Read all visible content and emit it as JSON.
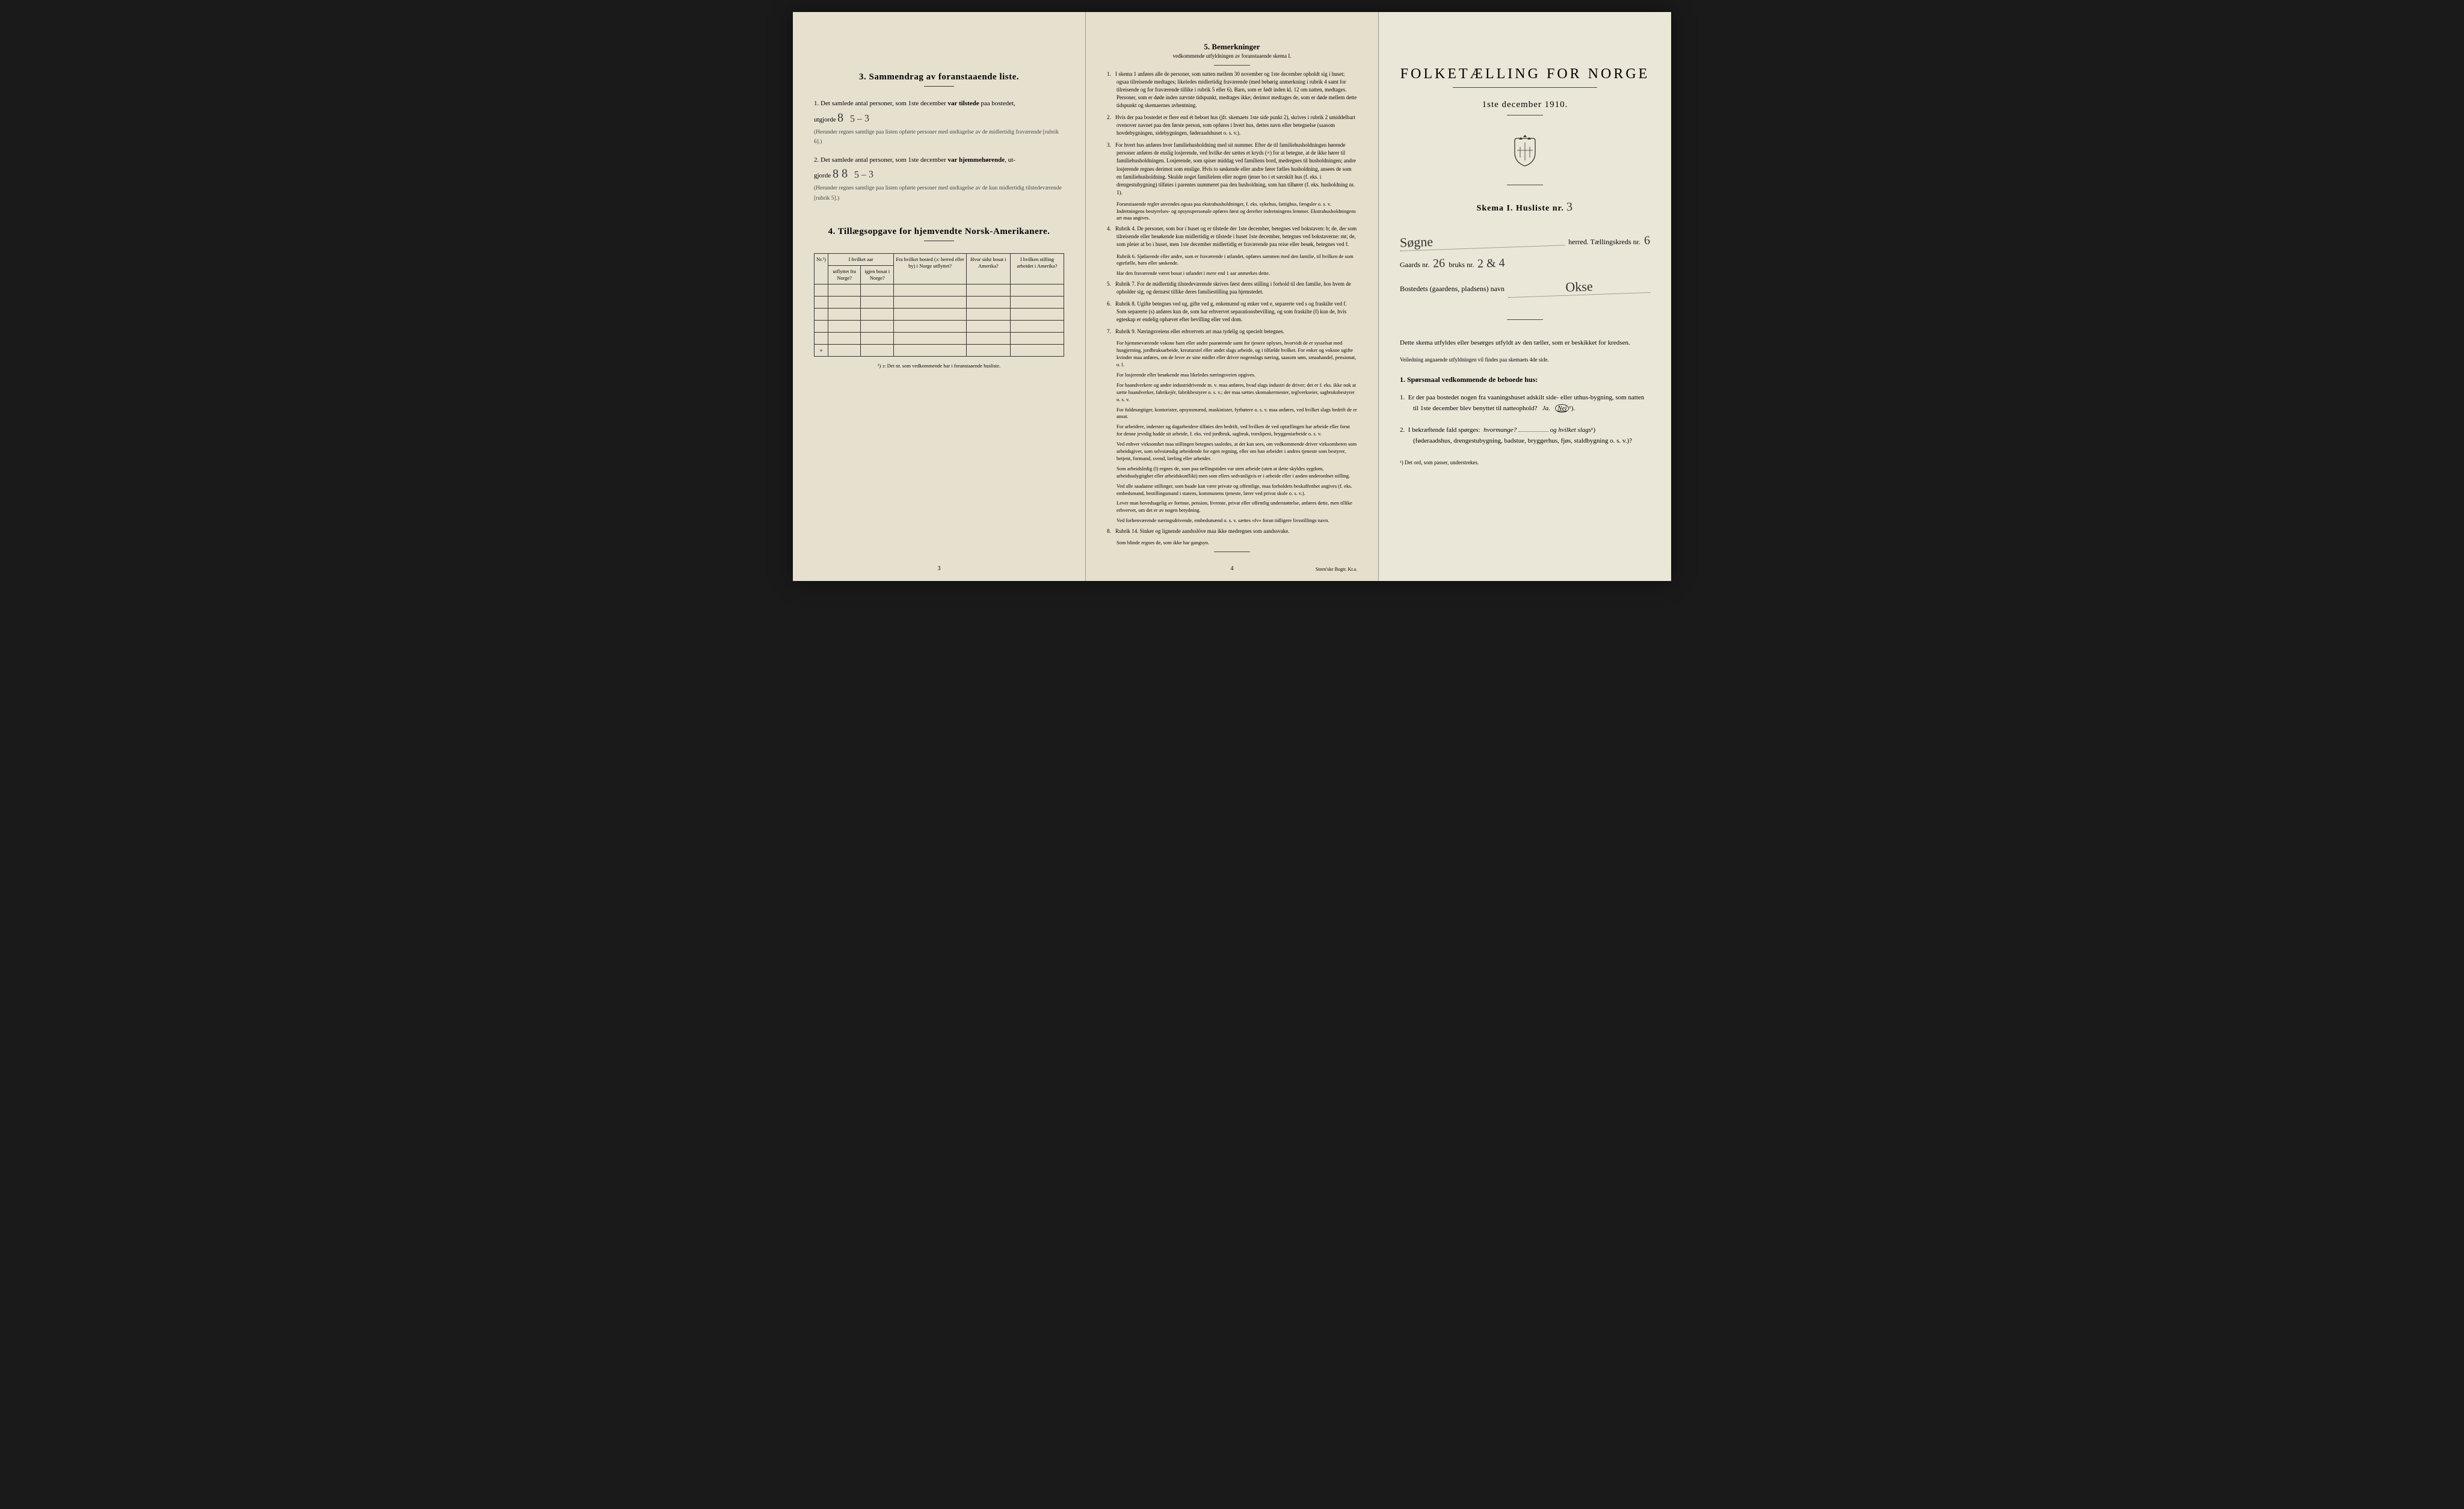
{
  "colors": {
    "page_bg_left": "#e6e1cf",
    "page_bg_center": "#e5dfcc",
    "page_bg_right": "#ebe7d8",
    "outer_bg": "#1a1a1a",
    "text": "#1a1a1a",
    "border": "#333333"
  },
  "typography": {
    "body_fontsize": 11,
    "title_fontsize": 24,
    "small_fontsize": 9
  },
  "page_left": {
    "section3_title": "3.   Sammendrag av foranstaaende liste.",
    "item1_pre": "1.  Det samlede antal personer, som 1ste december",
    "item1_var": "var tilstede",
    "item1_post": "paa bostedet,",
    "item1_utg": "utgjorde",
    "item1_hand": "8",
    "item1_hand2": "5 – 3",
    "item1_note": "(Herunder regnes samtlige paa listen opførte personer med undtagelse av de midlertidig fraværende [rubrik 6].)",
    "item2_pre": "2.  Det samlede antal personer, som 1ste december",
    "item2_var": "var hjemmehørende",
    "item2_post": ", ut-",
    "item2_gjorde": "gjorde",
    "item2_hand": "8  8",
    "item2_hand2": "5 – 3",
    "item2_note": "(Herunder regnes samtlige paa listen opførte personer med undtagelse av de kun midlertidig tilstedeværende [rubrik 5].)",
    "section4_title": "4.  Tillægsopgave for hjemvendte Norsk-Amerikanere.",
    "table": {
      "col1_top": "Nr.¹)",
      "col2_top": "I hvilket aar",
      "col2a": "utflyttet fra Norge?",
      "col2b": "igjen bosat i Norge?",
      "col3": "Fra hvilket bosted (ɔ: herred eller by) i Norge utflyttet?",
      "col4": "Hvor sidst bosat i Amerika?",
      "col5": "I hvilken stilling arbeidet i Amerika?",
      "rows": 6
    },
    "table_footnote": "¹) ɔ: Det nr. som vedkommende har i foranstaaende husliste.",
    "page_num": "3"
  },
  "page_center": {
    "title": "5.    Bemerkninger",
    "subtitle": "vedkommende utfyldningen av foranstaaende skema I.",
    "rules": [
      {
        "num": "1.",
        "text": "I skema 1 anføres alle de personer, som natten mellem 30 november og 1ste december opholdt sig i huset; ogsaa tilreisende medtages; likeledes midlertidig fraværende (med behørig anmerkning i rubrik 4 samt for tilreisende og for fraværende tillike i rubrik 5 eller 6). Barn, som er født inden kl. 12 om natten, medtages. Personer, som er døde inden nævnte tidspunkt, medtages ikke; derimot medtages de, som er døde mellem dette tidspunkt og skemaernes avhentning."
      },
      {
        "num": "2.",
        "text": "Hvis der paa bostedet er flere end ét beboet hus (jfr. skemaets 1ste side punkt 2), skrives i rubrik 2 umiddelbart ovenover navnet paa den første person, som opføres i hvert hus, dettes navn eller betegnelse (saasom hovdebygningen, sidebygningen, føderaadshuset o. s. v.)."
      },
      {
        "num": "3.",
        "text": "For hvert hus anføres hver familiehusholdning med sit nummer. Efter de til familiehusholdningen hørende personer anføres de enslig losjerende, ved hvilke der sættes et kryds (×) for at betegne, at de ikke hører til familiehusholdningen. Losjerende, som spiser middag ved familiens bord, medregnes til husholdningen; andre losjerende regnes derimot som enslige. Hvis to søskende eller andre fører fælles husholdning, ansees de som en familiehusholdning. Skulde noget familielem eller nogen tjener bo i et særskilt hus (f. eks. i drengestubygning) tilføies i parentes nummeret paa den husholdning, som han tilhører (f. eks. husholdning nr. 1)."
      },
      {
        "num": "",
        "text": "Foranstaaende regler anvendes ogsaa paa ekstrahusholdninger, f. eks. sykehus, fattighus, fængsler o. s. v. Indretningens bestyrelses- og opsynspersonale opføres først og derefter indretningens lemmer. Ekstrahusholdningens art maa angives."
      },
      {
        "num": "4.",
        "text": "Rubrik 4. De personer, som bor i huset og er tilstede der 1ste december, betegnes ved bokstaven: b; de, der som tilreisende eller besøkende kun midlertidig er tilstede i huset 1ste december, betegnes ved bokstaverne: mt; de, som pleier at bo i huset, men 1ste december midlertidig er fraværende paa reise eller besøk, betegnes ved f."
      },
      {
        "num": "",
        "text": "Rubrik 6. Sjøfarende eller andre, som er fraværende i utlandet, opføres sammen med den familie, til hvilken de som egtefælle, barn eller søskende."
      },
      {
        "num": "",
        "text": "Har den fraværende været bosat i utlandet i mere end 1 aar anmerkes dette."
      },
      {
        "num": "5.",
        "text": "Rubrik 7. For de midlertidig tilstedeværende skrives først deres stilling i forhold til den familie, hos hvem de opholder sig, og dernæst tillike deres familiestilling paa hjemstedet."
      },
      {
        "num": "6.",
        "text": "Rubrik 8. Ugifte betegnes ved ug, gifte ved g, enkemænd og enker ved e, separerte ved s og fraskilte ved f. Som separerte (s) anføres kun de, som har erhvervet separationsbevilling, og som fraskilte (f) kun de, hvis egteskap er endelig ophævet efter bevilling eller ved dom."
      },
      {
        "num": "7.",
        "text": "Rubrik 9. Næringsveiens eller erhvervets art maa tydelig og specielt betegnes."
      },
      {
        "num": "",
        "text": "For hjemmeværende voksne barn eller andre paarørende samt for tjenere oplyses, hvorvidt de er sysselsat med husgjerning, jordbruksarbeide, kreaturstel eller andet slags arbeide, og i tilfælde hvilket. For enker og voksne ugifte kvinder maa anføres, om de lever av sine midler eller driver nogenslags næring, saasom søm, smaahandel, pensionat, o. l."
      },
      {
        "num": "",
        "text": "For losjerende eller besøkende maa likeledes næringsveien opgives."
      },
      {
        "num": "",
        "text": "For haandverkere og andre industridrivende m. v. maa anføres, hvad slags industri de driver; det er f. eks. ikke nok at sætte haandverker, fabrikejér, fabrikbestyrer o. s. v.; der maa sættes skomakermester, teglverkseier, sagbruksbestyrer o. s. v."
      },
      {
        "num": "",
        "text": "For fuldmægtiger, kontorister, opsynsmænd, maskinister, fyrbøtere o. s. v. maa anføres, ved hvilket slags bedrift de er ansat."
      },
      {
        "num": "",
        "text": "For arbeidere, inderster og dagarbeidere tilføies den bedrift, ved hvilken de ved optællingen har arbeide eller forut for denne jevnlig hadde sit arbeide, f. eks. ved jordbruk, sagbruk, træslipeni, bryggeniarbeide o. s. v."
      },
      {
        "num": "",
        "text": "Ved enhver virksomhet maa stillingen betegnes saaledes, at det kan sees, om vedkommende driver virksomheten som arbeidsgiver, som selvstændig arbeidende for egen regning, eller om han arbeider i andres tjeneste som bestyrer, betjent, formand, svend, lærling eller arbeider."
      },
      {
        "num": "",
        "text": "Som arbeidsledig (l) regnes de, som paa tællingstiden var uten arbeide (uten at dette skyldes sygdom, arbeidsudygtighet eller arbeidskonflikt) men som ellers sedvanligvis er i arbeide eller i anden underordnet stilling."
      },
      {
        "num": "",
        "text": "Ved alle saadanne stillinger, som baade kan være private og offentlige, maa forholdets beskaffenhet angives (f. eks. embedsmand, bestillingsmand i statens, kommunens tjeneste, lærer ved privat skole o. s. v.)."
      },
      {
        "num": "",
        "text": "Lever man hovedsagelig av formue, pension, livrente, privat eller offentlig understøttelse, anføres dette, men tillike erhvervet, om det er av nogen betydning."
      },
      {
        "num": "",
        "text": "Ved forhenværende næringsdrivende, embedsmænd o. s. v. sættes «fv» foran tidligere livsstillings navn."
      },
      {
        "num": "8.",
        "text": "Rubrik 14. Sinker og lignende aandsslöve maa ikke medregnes som aandssvake."
      },
      {
        "num": "",
        "text": "Som blinde regnes de, som ikke har gangsyn."
      }
    ],
    "page_num": "4",
    "printer": "Steen'ske Bogtr. Kr.a."
  },
  "page_right": {
    "title": "FOLKETÆLLING FOR NORGE",
    "date": "1ste december 1910.",
    "skema_label": "Skema I.  Husliste nr.",
    "skema_nr": "3",
    "herred_hand": "Søgne",
    "herred_label": "herred.  Tællingskreds nr.",
    "kreds_nr": "6",
    "gaard_label": "Gaards nr.",
    "gaard_nr": "26",
    "bruks_label": "bruks nr.",
    "bruks_nr": "2 & 4",
    "bosted_label": "Bostedets (gaardens, pladsens) navn",
    "bosted_hand": "Okse",
    "instruction_text": "Dette skema utfyldes eller besørges utfyldt av den tæller, som er beskikket for kredsen.",
    "instruction_small": "Veiledning angaaende utfyldningen vil findes paa skemaets 4de side.",
    "q_header": "1.  Spørsmaal vedkommende de beboede hus:",
    "q1_num": "1.",
    "q1_text": "Er der paa bostedet nogen fra vaaningshuset adskilt side- eller uthus-bygning, som natten til 1ste december blev benyttet til natteophold?",
    "q1_ja": "Ja.",
    "q1_nei": "Nei",
    "q1_foot": "¹).",
    "q2_num": "2.",
    "q2_text_a": "I bekræftende fald spørges:",
    "q2_text_b": "hvormange?",
    "q2_text_c": "og hvilket slags",
    "q2_foot": "¹)",
    "q2_text_d": "(føderaadshus, drengestubygning, badstue, bryggerhus, fjøs, staldbygning o. s. v.)?",
    "footnote": "¹) Det ord, som passer, understrekes."
  }
}
